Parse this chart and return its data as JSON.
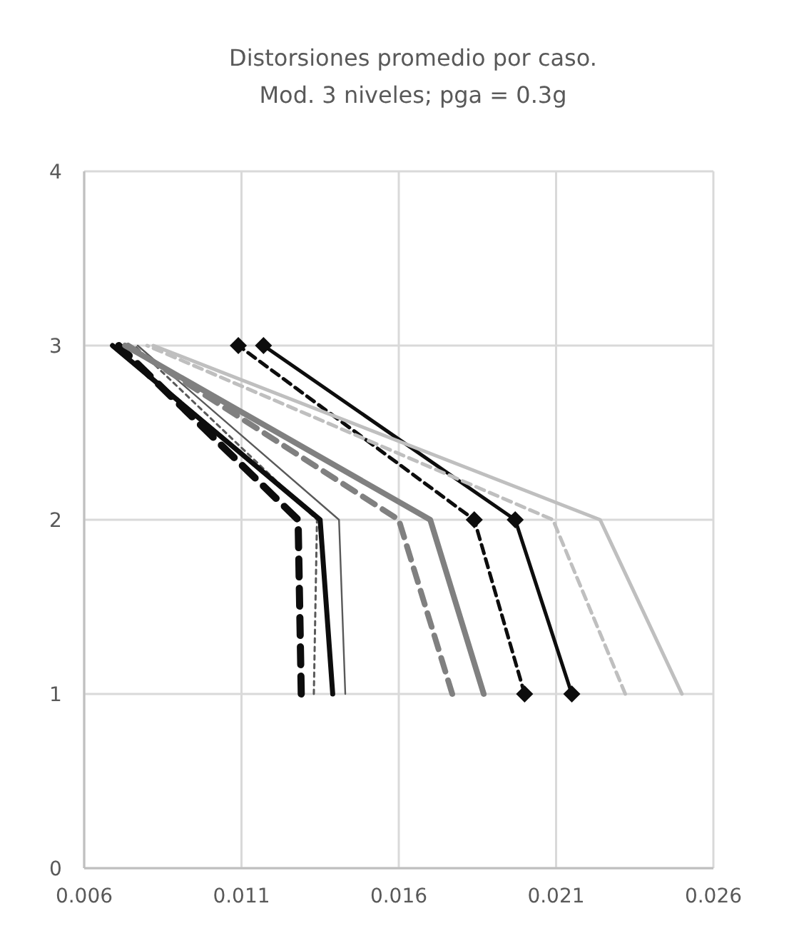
{
  "chart_data": {
    "type": "line",
    "title": "Distorsiones promedio por caso.\nMod. 3 niveles; pga = 0.3g",
    "xlim": [
      0.006,
      0.026
    ],
    "xticks": [
      0.006,
      0.011,
      0.016,
      0.021,
      0.026
    ],
    "ylim": [
      0,
      4
    ],
    "yticks": [
      0,
      1,
      2,
      3,
      4
    ],
    "grid": true,
    "marker": "none",
    "series": [
      {
        "color": "#0d0d0d",
        "line_style": "dashed",
        "x": [
          0.0129,
          0.0128,
          0.0071
        ],
        "values": [
          1,
          2,
          3
        ]
      },
      {
        "color": "#595959",
        "line_style": "dotted",
        "x": [
          0.0133,
          0.0134,
          0.0076
        ],
        "values": [
          1,
          2,
          3
        ]
      },
      {
        "color": "#0d0d0d",
        "line_style": "solid",
        "x": [
          0.0139,
          0.0135,
          0.0069
        ],
        "values": [
          1,
          2,
          3
        ]
      },
      {
        "color": "#595959",
        "line_style": "solid",
        "x": [
          0.0143,
          0.0141,
          0.0077
        ],
        "values": [
          1,
          2,
          3
        ]
      },
      {
        "color": "#808080",
        "line_style": "dashed",
        "x": [
          0.0177,
          0.016,
          0.0074
        ],
        "values": [
          1,
          2,
          3
        ]
      },
      {
        "color": "#808080",
        "line_style": "solid",
        "x": [
          0.0187,
          0.017,
          0.0073
        ],
        "values": [
          1,
          2,
          3
        ]
      },
      {
        "color": "#0d0d0d",
        "line_style": "dashed",
        "marker": "diamond",
        "x": [
          0.02,
          0.0184,
          0.0109
        ],
        "values": [
          1,
          2,
          3
        ]
      },
      {
        "color": "#0d0d0d",
        "line_style": "solid",
        "marker": "diamond",
        "x": [
          0.0215,
          0.0197,
          0.0117
        ],
        "values": [
          1,
          2,
          3
        ]
      },
      {
        "color": "#bfbfbf",
        "line_style": "dashed",
        "x": [
          0.0232,
          0.0209,
          0.008
        ],
        "values": [
          1,
          2,
          3
        ]
      },
      {
        "color": "#bfbfbf",
        "line_style": "solid",
        "x": [
          0.025,
          0.0224,
          0.0082
        ],
        "values": [
          1,
          2,
          3
        ]
      }
    ]
  }
}
